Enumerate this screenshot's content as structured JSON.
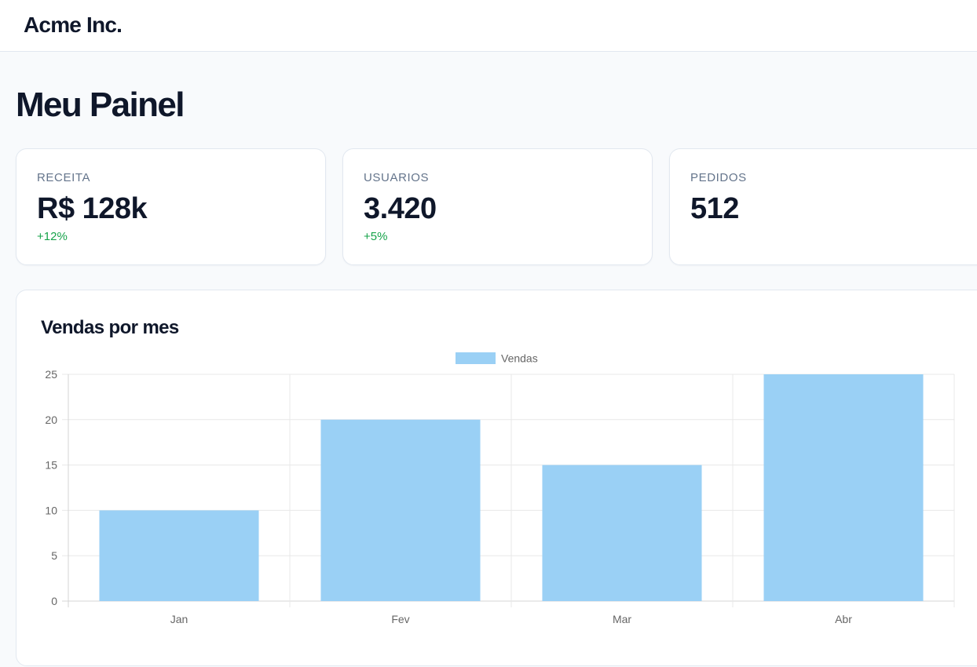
{
  "header": {
    "brand": "Acme Inc."
  },
  "page": {
    "title": "Meu Painel"
  },
  "kpis": [
    {
      "label": "RECEITA",
      "value": "R$ 128k",
      "delta": "+12%"
    },
    {
      "label": "USUARIOS",
      "value": "3.420",
      "delta": "+5%"
    },
    {
      "label": "PEDIDOS",
      "value": "512",
      "delta": ""
    }
  ],
  "colors": {
    "delta_positive": "#16a34a",
    "bar_fill": "#9ad0f5",
    "bar_stroke": "#36a2eb"
  },
  "chart": {
    "title": "Vendas por mes"
  },
  "chart_data": {
    "type": "bar",
    "categories": [
      "Jan",
      "Fev",
      "Mar",
      "Abr"
    ],
    "series": [
      {
        "name": "Vendas",
        "values": [
          10,
          20,
          15,
          25
        ]
      }
    ],
    "ylim": [
      0,
      25
    ],
    "yticks": [
      0,
      5,
      10,
      15,
      20,
      25
    ],
    "grid": true,
    "legend": "top-center"
  }
}
